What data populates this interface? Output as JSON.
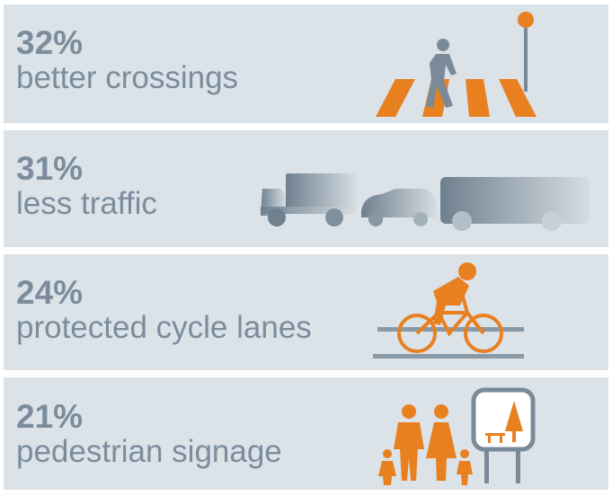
{
  "items": [
    {
      "percent": "32%",
      "label": "better crossings"
    },
    {
      "percent": "31%",
      "label": "less traffic"
    },
    {
      "percent": "24%",
      "label": "protected cycle lanes"
    },
    {
      "percent": "21%",
      "label": "pedestrian signage"
    }
  ]
}
